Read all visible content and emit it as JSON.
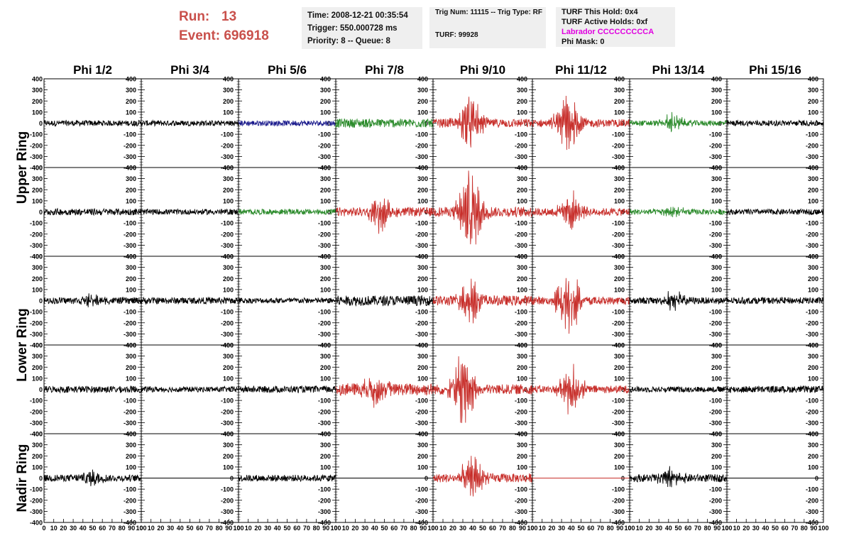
{
  "header": {
    "run_label": "Run:",
    "run_value": "13",
    "event_label": "Event:",
    "event_value": "696918"
  },
  "info1": {
    "time": "Time: 2008-12-21 00:35:54",
    "trigger": "Trigger: 550.000728 ms",
    "priority": "Priority: 8 -- Queue: 8"
  },
  "info2": {
    "trig": "Trig Num: 11115 -- Trig Type: RF",
    "turf": "TURF: 99928"
  },
  "info3": {
    "hold": "TURF This Hold: 0x4",
    "active": "TURF Active Holds: 0xf",
    "labrador": "Labrador CCCCCCCCCA",
    "phimask": "Phi Mask: 0"
  },
  "colors": {
    "black": "#000000",
    "red": "#c8302c",
    "green": "#2a8a2a",
    "blue": "#1a1a8c",
    "header_red": "#c9504b",
    "magenta": "#e000e0",
    "info_bg": "#efefef"
  },
  "chart_data": {
    "type": "line",
    "columns": [
      "Phi 1/2",
      "Phi 3/4",
      "Phi 5/6",
      "Phi 7/8",
      "Phi 9/10",
      "Phi 11/12",
      "Phi 13/14",
      "Phi 15/16"
    ],
    "ring_labels": [
      "Upper Ring",
      "Lower Ring",
      "Nadir Ring"
    ],
    "rows_per_ring": [
      2,
      2,
      1
    ],
    "ylim": [
      -400,
      400
    ],
    "yticks": [
      400,
      300,
      200,
      100,
      0,
      -100,
      -200,
      -300,
      -400
    ],
    "xlim": [
      0,
      100
    ],
    "xticks": [
      0,
      10,
      20,
      30,
      40,
      50,
      60,
      70,
      80,
      90,
      100
    ],
    "xtick_labels": [
      "0",
      "10",
      "20",
      "30",
      "40",
      "50",
      "60",
      "70",
      "80",
      "90",
      "100"
    ],
    "traces": [
      [
        {
          "color": "black",
          "amp": 25,
          "burst": 0,
          "center": 50
        },
        {
          "color": "black",
          "amp": 25,
          "burst": 0,
          "center": 50
        },
        {
          "color": "blue",
          "amp": 25,
          "burst": 0,
          "center": 50
        },
        {
          "color": "green",
          "amp": 40,
          "burst": 0,
          "center": 50
        },
        {
          "color": "red",
          "amp": 40,
          "burst": 260,
          "center": 38
        },
        {
          "color": "red",
          "amp": 35,
          "burst": 300,
          "center": 37
        },
        {
          "color": "green",
          "amp": 25,
          "burst": 80,
          "center": 45
        },
        {
          "color": "black",
          "amp": 25,
          "burst": 0,
          "center": 50
        }
      ],
      [
        {
          "color": "black",
          "amp": 30,
          "burst": 0,
          "center": 50
        },
        {
          "color": "black",
          "amp": 25,
          "burst": 0,
          "center": 50
        },
        {
          "color": "green",
          "amp": 25,
          "burst": 0,
          "center": 50
        },
        {
          "color": "red",
          "amp": 40,
          "burst": 160,
          "center": 45
        },
        {
          "color": "red",
          "amp": 45,
          "burst": 380,
          "center": 38
        },
        {
          "color": "red",
          "amp": 35,
          "burst": 160,
          "center": 40
        },
        {
          "color": "green",
          "amp": 25,
          "burst": 40,
          "center": 45
        },
        {
          "color": "black",
          "amp": 25,
          "burst": 0,
          "center": 50
        }
      ],
      [
        {
          "color": "black",
          "amp": 30,
          "burst": 40,
          "center": 50
        },
        {
          "color": "black",
          "amp": 30,
          "burst": 0,
          "center": 50
        },
        {
          "color": "black",
          "amp": 25,
          "burst": 0,
          "center": 50
        },
        {
          "color": "black",
          "amp": 45,
          "burst": 0,
          "center": 50
        },
        {
          "color": "red",
          "amp": 45,
          "burst": 180,
          "center": 38
        },
        {
          "color": "red",
          "amp": 35,
          "burst": 300,
          "center": 37
        },
        {
          "color": "black",
          "amp": 30,
          "burst": 80,
          "center": 45
        },
        {
          "color": "black",
          "amp": 30,
          "burst": 0,
          "center": 50
        }
      ],
      [
        {
          "color": "black",
          "amp": 30,
          "burst": 0,
          "center": 50
        },
        {
          "color": "black",
          "amp": 25,
          "burst": 0,
          "center": 50
        },
        {
          "color": "black",
          "amp": 30,
          "burst": 0,
          "center": 50
        },
        {
          "color": "red",
          "amp": 55,
          "burst": 130,
          "center": 42
        },
        {
          "color": "red",
          "amp": 45,
          "burst": 320,
          "center": 30
        },
        {
          "color": "red",
          "amp": 35,
          "burst": 200,
          "center": 40
        },
        {
          "color": "black",
          "amp": 25,
          "burst": 0,
          "center": 50
        },
        {
          "color": "black",
          "amp": 30,
          "burst": 0,
          "center": 50
        }
      ],
      [
        {
          "color": "black",
          "amp": 30,
          "burst": 70,
          "center": 48
        },
        {
          "color": "flat",
          "amp": 0,
          "burst": 0,
          "center": 50
        },
        {
          "color": "black",
          "amp": 30,
          "burst": 0,
          "center": 50
        },
        {
          "color": "flat",
          "amp": 0,
          "burst": 0,
          "center": 50
        },
        {
          "color": "red",
          "amp": 40,
          "burst": 180,
          "center": 40
        },
        {
          "color": "flatred",
          "amp": 0,
          "burst": 0,
          "center": 50
        },
        {
          "color": "black",
          "amp": 35,
          "burst": 80,
          "center": 42
        },
        {
          "color": "flat",
          "amp": 0,
          "burst": 0,
          "center": 50
        }
      ]
    ]
  }
}
